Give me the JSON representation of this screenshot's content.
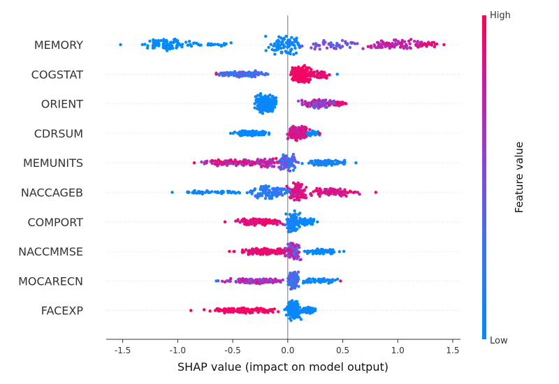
{
  "chart_data": {
    "type": "scatter",
    "xlabel": "SHAP value (impact on model output)",
    "xlim": [
      -1.65,
      1.57
    ],
    "xticks": [
      "-1.5",
      "-1.0",
      "-0.5",
      "0.0",
      "0.5",
      "1.0",
      "1.5"
    ],
    "xtick_values": [
      -1.5,
      -1.0,
      -0.5,
      0.0,
      0.5,
      1.0,
      1.5
    ],
    "colorbar": {
      "title": "Feature value",
      "high_label": "High",
      "low_label": "Low",
      "low_color": "#008bfb",
      "high_color": "#ff0052"
    },
    "features": [
      {
        "name": "MEMORY",
        "min": -1.52,
        "max": 1.42
      },
      {
        "name": "COGSTAT",
        "min": -0.65,
        "max": 0.45
      },
      {
        "name": "ORIENT",
        "min": -0.3,
        "max": 0.53
      },
      {
        "name": "CDRSUM",
        "min": -0.52,
        "max": 0.29
      },
      {
        "name": "MEMUNITS",
        "min": -0.85,
        "max": 0.62
      },
      {
        "name": "NACCAGEB",
        "min": -1.05,
        "max": 0.8
      },
      {
        "name": "COMPORT",
        "min": -0.57,
        "max": 0.27
      },
      {
        "name": "NACCMMSE",
        "min": -0.53,
        "max": 0.51
      },
      {
        "name": "MOCARECN",
        "min": -0.65,
        "max": 0.48
      },
      {
        "name": "FACEXP",
        "min": -0.88,
        "max": 0.25
      }
    ]
  }
}
